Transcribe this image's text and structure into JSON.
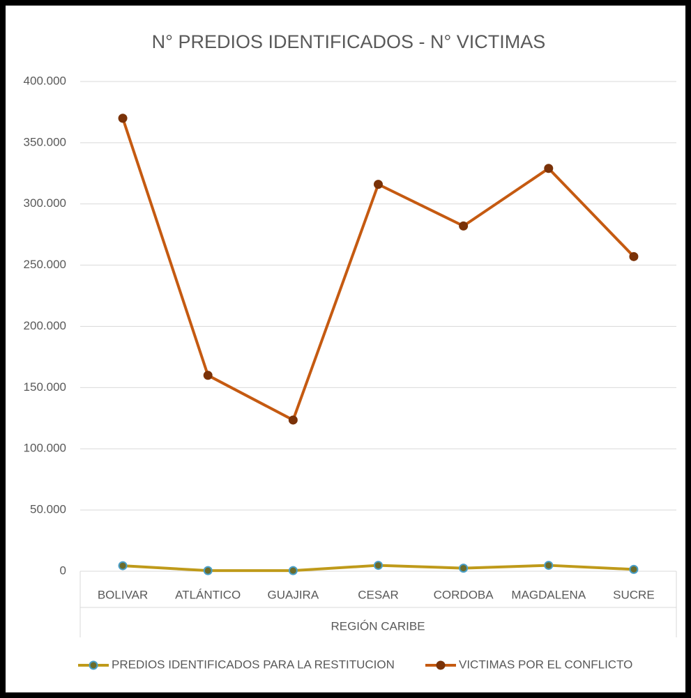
{
  "chart_data": {
    "type": "line",
    "title": "N° PREDIOS IDENTIFICADOS - N° VICTIMAS",
    "x_group_label": "REGIÓN CARIBE",
    "categories": [
      "BOLIVAR",
      "ATLÁNTICO",
      "GUAJIRA",
      "CESAR",
      "CORDOBA",
      "MAGDALENA",
      "SUCRE"
    ],
    "series": [
      {
        "name": "PREDIOS IDENTIFICADOS PARA LA RESTITUCION",
        "color": "#bf9a1a",
        "marker_edge": "#4a9fc8",
        "values": [
          4500,
          500,
          500,
          4800,
          2500,
          4800,
          1500
        ]
      },
      {
        "name": "VICTIMAS POR EL CONFLICTO",
        "color": "#c55a11",
        "marker_edge": "#7a3208",
        "values": [
          370000,
          160000,
          123500,
          316000,
          282000,
          329000,
          257000
        ]
      }
    ],
    "ylim": [
      0,
      400000
    ],
    "yticks": [
      0,
      {
        "value": 50000,
        "label": "50.000"
      },
      {
        "value": 100000,
        "label": "100.000"
      },
      {
        "value": 150000,
        "label": "150.000"
      },
      {
        "value": 200000,
        "label": "200.000"
      },
      {
        "value": 250000,
        "label": "250.000"
      },
      {
        "value": 300000,
        "label": "300.000"
      },
      {
        "value": 350000,
        "label": "350.000"
      },
      {
        "value": 400000,
        "label": "400.000"
      }
    ],
    "grid": true,
    "legend": "bottom"
  }
}
